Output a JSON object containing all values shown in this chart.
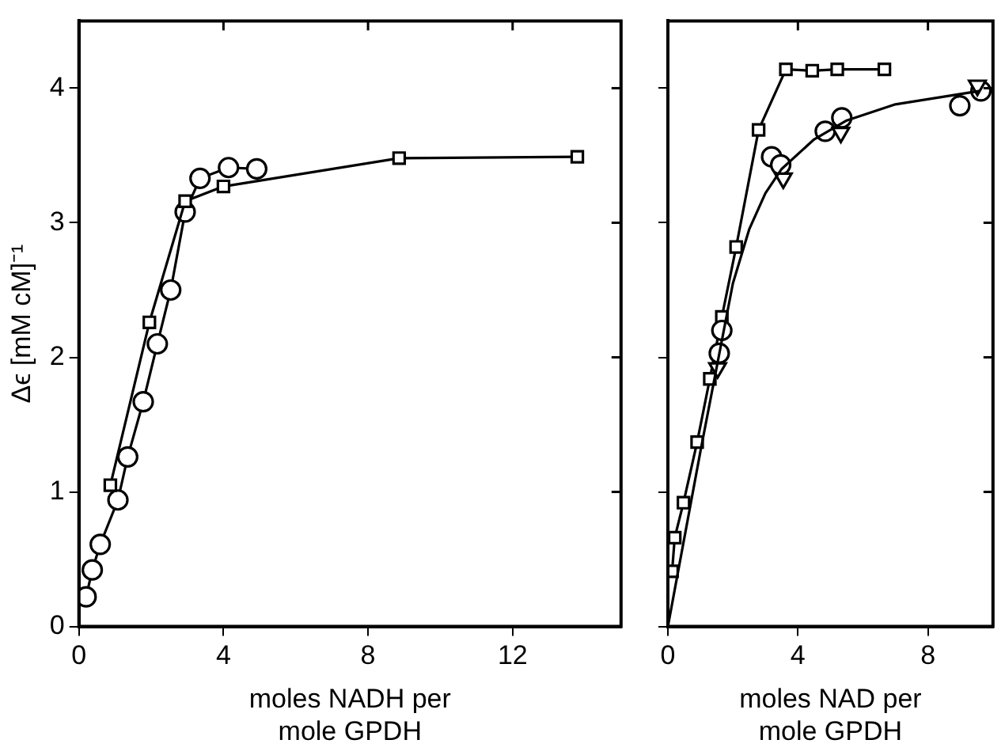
{
  "chart_data": [
    {
      "type": "line",
      "ylabel": "Δϵ [mM cM]⁻¹",
      "xlabel": "moles NADH per\nmole GPDH",
      "xlim": [
        0,
        15
      ],
      "xticks": [
        0,
        4,
        8,
        12
      ],
      "ylim": [
        0,
        4.5
      ],
      "yticks": [
        0,
        1,
        2,
        3,
        4
      ],
      "grid": false,
      "legend": false,
      "series": [
        {
          "marker": "circle",
          "color": "#000000",
          "x": [
            0.2,
            0.37,
            0.59,
            1.08,
            1.35,
            1.78,
            2.17,
            2.54,
            2.94,
            3.35,
            4.14,
            4.92
          ],
          "values": [
            0.22,
            0.42,
            0.61,
            0.94,
            1.26,
            1.67,
            2.1,
            2.5,
            3.08,
            3.33,
            3.41,
            3.4
          ]
        },
        {
          "marker": "square",
          "color": "#000000",
          "x": [
            0.87,
            1.95,
            2.94,
            4.0,
            8.86,
            13.79
          ],
          "values": [
            1.05,
            2.26,
            3.16,
            3.27,
            3.48,
            3.49
          ]
        }
      ]
    },
    {
      "type": "line",
      "xlabel": "moles NAD per\nmole GPDH",
      "xlim": [
        0,
        10
      ],
      "xticks": [
        0,
        4,
        8
      ],
      "ylim": [
        0,
        4.5
      ],
      "yticks": [
        0,
        1,
        2,
        3,
        4
      ],
      "tick_labels": "x",
      "grid": false,
      "legend": false,
      "series": [
        {
          "marker": "square",
          "color": "#000000",
          "x": [
            0.13,
            0.21,
            0.48,
            0.9,
            1.29,
            1.66,
            2.1,
            2.79,
            3.63,
            4.44,
            5.21,
            6.66
          ],
          "values": [
            0.41,
            0.66,
            0.92,
            1.37,
            1.84,
            2.3,
            2.82,
            3.69,
            4.14,
            4.13,
            4.14,
            4.14
          ]
        },
        {
          "type": "scatter",
          "marker": "circle",
          "color": "#000000",
          "x": [
            1.58,
            3.19,
            4.84,
            8.98
          ],
          "values": [
            2.03,
            3.49,
            3.68,
            3.87
          ]
        },
        {
          "type": "scatter",
          "marker": "circle",
          "color": "#000000",
          "x": [
            1.66,
            3.47,
            5.35,
            9.63
          ],
          "values": [
            2.2,
            3.43,
            3.78,
            3.98
          ]
        },
        {
          "type": "scatter",
          "marker": "triangle",
          "color": "#000000",
          "x": [
            1.53,
            3.55,
            5.32,
            9.52
          ],
          "values": [
            1.92,
            3.33,
            3.67,
            4.02
          ]
        },
        {
          "marker": "none",
          "color": "#000000",
          "x": [
            0,
            1,
            2,
            2.5,
            3,
            3.5,
            4.5,
            5.5,
            7,
            9.6
          ],
          "values": [
            0,
            1.3,
            2.55,
            2.95,
            3.22,
            3.4,
            3.62,
            3.76,
            3.88,
            3.98
          ]
        }
      ]
    }
  ]
}
